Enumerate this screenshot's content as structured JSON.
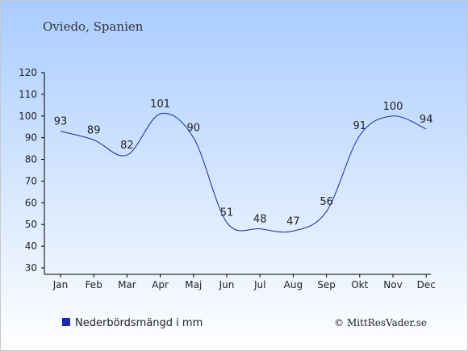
{
  "chart_data": {
    "type": "line",
    "title": "Oviedo, Spanien",
    "categories": [
      "Jan",
      "Feb",
      "Mar",
      "Apr",
      "Maj",
      "Jun",
      "Jul",
      "Aug",
      "Sep",
      "Okt",
      "Nov",
      "Dec"
    ],
    "series": [
      {
        "name": "Nederbördsmängd i mm",
        "values": [
          93,
          89,
          82,
          101,
          90,
          51,
          48,
          47,
          56,
          91,
          100,
          94
        ],
        "color": "#1a2aa8"
      }
    ],
    "ylim": [
      30,
      120
    ],
    "yticks": [
      30,
      40,
      50,
      60,
      70,
      80,
      90,
      100,
      110,
      120
    ],
    "grid": false,
    "legend_position": "bottom-left",
    "background_top": "#a9ccff",
    "background_bottom": "#ffffff"
  },
  "copyright": "© MittResVader.se"
}
